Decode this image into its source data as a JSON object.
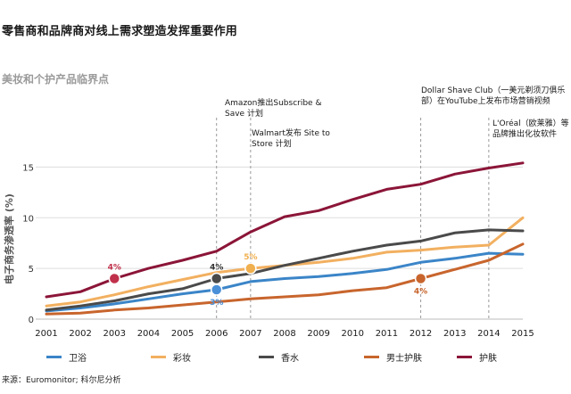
{
  "header": {
    "title": "零售商和品牌商对线上需求塑造发挥重要作用",
    "subtitle": "美妆和个护产品临界点"
  },
  "source": "来源：Euromonitor; 科尔尼分析",
  "colors": {
    "卫浴": "#3b85c8",
    "彩妆": "#f2b060",
    "香水": "#4a4a4a",
    "男士护肤": "#c8652d",
    "护肤": "#8b1538",
    "highlight_blue": "#4a90d9",
    "highlight_orange": "#f0b050",
    "highlight_rust": "#c8652d",
    "highlight_red": "#c0304a",
    "grid": "#dddddd",
    "dash": "#999999"
  },
  "annotations": {
    "amazon": "Amazon推出Subscribe & Save 计划",
    "walmart": "Walmart发布 Site to Store 计划",
    "dollar_shave": "Dollar Shave Club（一美元剃须刀俱乐部）在YouTube上发布市场营销视频",
    "loreal": "L'Oréal（欧莱雅）等品牌推出化妆软件"
  },
  "chart_data": {
    "type": "line",
    "title": "美妆和个护产品临界点",
    "xlabel": "",
    "ylabel": "电子商务渗透率 (%)",
    "x": [
      2001,
      2002,
      2003,
      2004,
      2005,
      2006,
      2007,
      2008,
      2009,
      2010,
      2011,
      2012,
      2013,
      2014,
      2015
    ],
    "ylim": [
      0,
      16
    ],
    "yticks": [
      0,
      5,
      10,
      15
    ],
    "grid": true,
    "series": [
      {
        "name": "卫浴",
        "values": [
          0.8,
          1.1,
          1.5,
          2.0,
          2.5,
          2.9,
          3.7,
          4.0,
          4.2,
          4.5,
          4.9,
          5.6,
          6.0,
          6.5,
          6.4
        ]
      },
      {
        "name": "彩妆",
        "values": [
          1.3,
          1.7,
          2.4,
          3.2,
          3.9,
          4.6,
          5.0,
          5.3,
          5.6,
          6.0,
          6.6,
          6.8,
          7.1,
          7.3,
          10.0
        ]
      },
      {
        "name": "香水",
        "values": [
          0.9,
          1.3,
          1.8,
          2.5,
          3.0,
          4.0,
          4.5,
          5.3,
          6.0,
          6.7,
          7.3,
          7.7,
          8.5,
          8.8,
          8.7
        ]
      },
      {
        "name": "男士护肤",
        "values": [
          0.5,
          0.6,
          0.9,
          1.1,
          1.4,
          1.7,
          2.0,
          2.2,
          2.4,
          2.8,
          3.1,
          4.0,
          4.9,
          5.8,
          7.4
        ]
      },
      {
        "name": "护肤",
        "values": [
          2.2,
          2.7,
          4.0,
          5.0,
          5.8,
          6.7,
          8.6,
          10.1,
          10.7,
          11.8,
          12.8,
          13.3,
          14.3,
          14.9,
          15.4
        ]
      }
    ],
    "highlights": [
      {
        "series": "护肤",
        "year": 2003,
        "label": "4%"
      },
      {
        "series": "香水",
        "year": 2006,
        "label": "4%"
      },
      {
        "series": "卫浴",
        "year": 2006,
        "label": "3%"
      },
      {
        "series": "彩妆",
        "year": 2007,
        "label": "5%"
      },
      {
        "series": "男士护肤",
        "year": 2012,
        "label": "4%"
      }
    ],
    "events": [
      2006,
      2007,
      2012,
      2014
    ]
  }
}
